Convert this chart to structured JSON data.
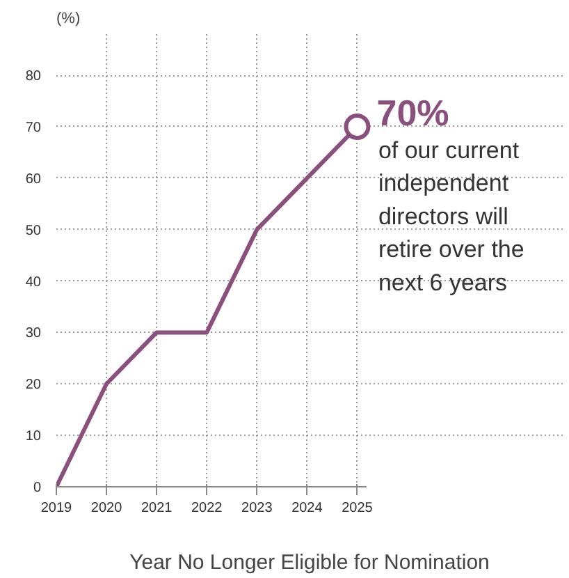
{
  "chart_data": {
    "type": "line",
    "ylabel": "(%)",
    "xlabel": "Year No Longer Eligible for Nomination",
    "x": [
      2019,
      2020,
      2021,
      2022,
      2023,
      2024,
      2025
    ],
    "series": [
      {
        "color": "#8b4f7e",
        "values": [
          0,
          20,
          30,
          30,
          50,
          60,
          70
        ],
        "marker": "none"
      },
      {
        "type": "scatter",
        "color": "#8b4f7e",
        "x": [
          2025
        ],
        "values": [
          70
        ],
        "marker": "circle"
      }
    ],
    "xlim": [
      2019,
      2025.2
    ],
    "ylim": [
      0,
      88
    ],
    "xticks": [
      2019,
      2020,
      2021,
      2022,
      2023,
      2024,
      2025
    ],
    "yticks": [
      0,
      10,
      20,
      30,
      40,
      50,
      60,
      70,
      80
    ],
    "grid": true,
    "annotations": [
      {
        "text": "70%",
        "x": 2025,
        "y": 70
      },
      "of our current independent directors will retire over the next 6 years"
    ]
  }
}
